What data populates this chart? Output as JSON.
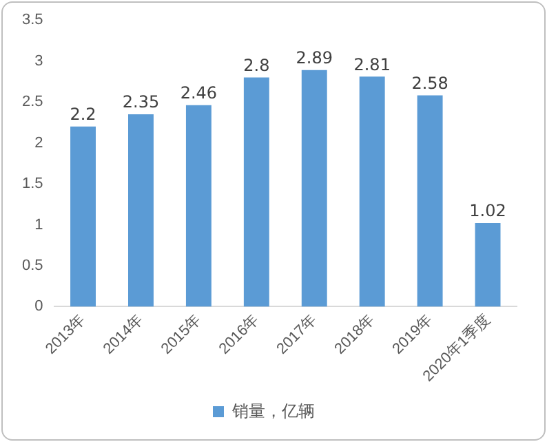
{
  "chart_data": {
    "type": "bar",
    "categories": [
      "2013年",
      "2014年",
      "2015年",
      "2016年",
      "2017年",
      "2018年",
      "2019年",
      "2020年1季度"
    ],
    "series": [
      {
        "name": "销量，亿辆",
        "color": "#5b9bd5",
        "values": [
          2.2,
          2.35,
          2.46,
          2.8,
          2.89,
          2.81,
          2.58,
          1.02
        ]
      }
    ],
    "ylim": [
      0,
      3.5
    ],
    "yticks": [
      0,
      0.5,
      1,
      1.5,
      2,
      2.5,
      3,
      3.5
    ],
    "grid": false,
    "legend": "bottom",
    "data_labels": true
  }
}
